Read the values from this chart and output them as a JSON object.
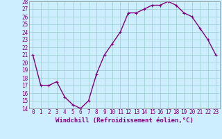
{
  "x": [
    0,
    1,
    2,
    3,
    4,
    5,
    6,
    7,
    8,
    9,
    10,
    11,
    12,
    13,
    14,
    15,
    16,
    17,
    18,
    19,
    20,
    21,
    22,
    23
  ],
  "y": [
    21,
    17,
    17,
    17.5,
    15.5,
    14.5,
    14,
    15,
    18.5,
    21,
    22.5,
    24,
    26.5,
    26.5,
    27,
    27.5,
    27.5,
    28,
    27.5,
    26.5,
    26,
    24.5,
    23,
    21
  ],
  "line_color": "#800080",
  "marker": "+",
  "marker_size": 3,
  "bg_color": "#cceeff",
  "grid_color": "#99cccc",
  "xlabel": "Windchill (Refroidissement éolien,°C)",
  "ylim": [
    14,
    28
  ],
  "xlim_min": -0.5,
  "xlim_max": 23.5,
  "yticks": [
    14,
    15,
    16,
    17,
    18,
    19,
    20,
    21,
    22,
    23,
    24,
    25,
    26,
    27,
    28
  ],
  "xticks": [
    0,
    1,
    2,
    3,
    4,
    5,
    6,
    7,
    8,
    9,
    10,
    11,
    12,
    13,
    14,
    15,
    16,
    17,
    18,
    19,
    20,
    21,
    22,
    23
  ],
  "xlabel_fontsize": 6.5,
  "tick_fontsize": 5.5,
  "line_width": 1.0
}
